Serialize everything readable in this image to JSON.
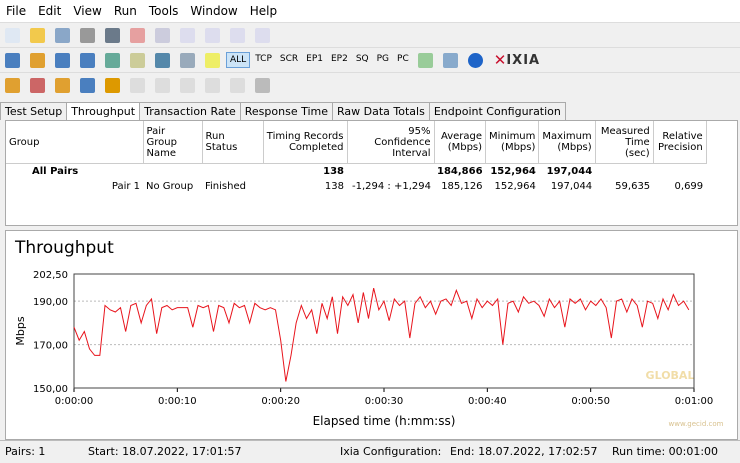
{
  "menu": [
    "File",
    "Edit",
    "View",
    "Run",
    "Tools",
    "Window",
    "Help"
  ],
  "toolbar": {
    "filters": [
      "ALL",
      "TCP",
      "SCR",
      "EP1",
      "EP2",
      "SQ",
      "PG",
      "PC"
    ],
    "brand": "IXIA"
  },
  "tabs": [
    "Test Setup",
    "Throughput",
    "Transaction Rate",
    "Response Time",
    "Raw Data Totals",
    "Endpoint Configuration"
  ],
  "table": {
    "columns": [
      "Group",
      "Pair Group Name",
      "Run Status",
      "Timing Records Completed",
      "95% Confidence Interval",
      "Average (Mbps)",
      "Minimum (Mbps)",
      "Maximum (Mbps)",
      "Measured Time (sec)",
      "Relative Precision"
    ],
    "rows": [
      [
        "All Pairs",
        null,
        null,
        "138",
        null,
        "184,866",
        "152,964",
        "197,044",
        null,
        null
      ],
      [
        "Pair 1",
        "No Group",
        "Finished",
        "138",
        "-1,294 : +1,294",
        "185,126",
        "152,964",
        "197,044",
        "59,635",
        "0,699"
      ]
    ]
  },
  "chart_data": {
    "type": "line",
    "title": "Throughput",
    "xlabel": "Elapsed time (h:mm:ss)",
    "ylabel": "Mbps",
    "xlim": [
      0,
      60
    ],
    "ylim": [
      150,
      202.5
    ],
    "xticks": [
      {
        "value": 0,
        "label": "0:00:00"
      },
      {
        "value": 10,
        "label": "0:00:10"
      },
      {
        "value": 20,
        "label": "0:00:20"
      },
      {
        "value": 30,
        "label": "0:00:30"
      },
      {
        "value": 40,
        "label": "0:00:40"
      },
      {
        "value": 50,
        "label": "0:00:50"
      },
      {
        "value": 60,
        "label": "0:01:00"
      }
    ],
    "yticks": [
      {
        "value": 150,
        "label": "150,00"
      },
      {
        "value": 170,
        "label": "170,00"
      },
      {
        "value": 190,
        "label": "190,00"
      },
      {
        "value": 202.5,
        "label": "202,50"
      }
    ],
    "grid": true,
    "x": [
      0,
      0.5,
      1,
      1.5,
      2,
      2.5,
      3,
      3.5,
      4,
      4.5,
      5,
      5.5,
      6,
      6.5,
      7,
      7.5,
      8,
      8.5,
      9,
      9.5,
      10,
      10.5,
      11,
      11.5,
      12,
      12.5,
      13,
      13.5,
      14,
      14.5,
      15,
      15.5,
      16,
      16.5,
      17,
      17.5,
      18,
      18.5,
      19,
      19.5,
      20,
      20.5,
      21,
      21.5,
      22,
      22.5,
      23,
      23.5,
      24,
      24.5,
      25,
      25.5,
      26,
      26.5,
      27,
      27.5,
      28,
      28.5,
      29,
      29.5,
      30,
      30.5,
      31,
      31.5,
      32,
      32.5,
      33,
      33.5,
      34,
      34.5,
      35,
      35.5,
      36,
      36.5,
      37,
      37.5,
      38,
      38.5,
      39,
      39.5,
      40,
      40.5,
      41,
      41.5,
      42,
      42.5,
      43,
      43.5,
      44,
      44.5,
      45,
      45.5,
      46,
      46.5,
      47,
      47.5,
      48,
      48.5,
      49,
      49.5,
      50,
      50.5,
      51,
      51.5,
      52,
      52.5,
      53,
      53.5,
      54,
      54.5,
      55,
      55.5,
      56,
      56.5,
      57,
      57.5,
      58,
      58.5,
      59,
      59.5
    ],
    "series": [
      {
        "name": "Pair 1",
        "color": "#e8141c",
        "values": [
          178,
          172,
          176,
          168,
          165,
          165,
          188,
          186,
          185,
          187,
          176,
          188,
          189,
          180,
          188,
          191,
          175,
          187,
          188,
          186,
          187,
          187,
          187,
          178,
          188,
          187,
          188,
          176,
          188,
          187,
          180,
          189,
          187,
          188,
          180,
          189,
          187,
          186,
          187,
          186,
          172,
          153,
          165,
          180,
          188,
          182,
          186,
          175,
          189,
          182,
          192,
          175,
          192,
          188,
          193,
          180,
          194,
          182,
          196,
          186,
          190,
          181,
          191,
          188,
          190,
          173,
          189,
          192,
          187,
          190,
          184,
          190,
          191,
          188,
          195,
          189,
          190,
          182,
          191,
          187,
          190,
          188,
          191,
          170,
          189,
          190,
          185,
          192,
          189,
          190,
          188,
          183,
          191,
          187,
          190,
          178,
          191,
          189,
          191,
          186,
          190,
          188,
          191,
          187,
          173,
          190,
          191,
          185,
          191,
          188,
          178,
          190,
          189,
          182,
          191,
          186,
          193,
          188,
          190,
          186
        ]
      }
    ]
  },
  "status": [
    "Pairs: 1",
    "Start: 18.07.2022, 17:01:57",
    "Ixia Configuration:",
    "End: 18.07.2022, 17:02:57",
    "Run time: 00:01:00"
  ],
  "watermark": [
    "GLOBAL",
    "www.gecid.com"
  ]
}
